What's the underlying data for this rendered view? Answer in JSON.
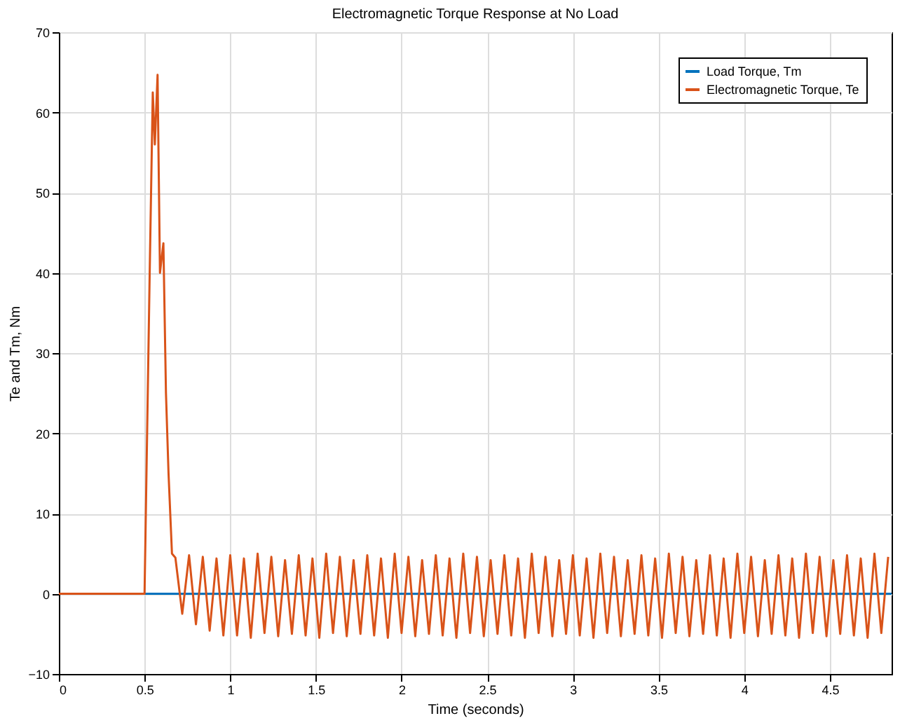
{
  "chart_data": {
    "type": "line",
    "title": "Electromagnetic Torque Response at No Load",
    "xlabel": "Time (seconds)",
    "ylabel": "Te and Tm, Nm",
    "xlim": [
      0,
      4.86
    ],
    "xticks": [
      0,
      0.5,
      1,
      1.5,
      2,
      2.5,
      3,
      3.5,
      4,
      4.5
    ],
    "ylim": [
      -10,
      70
    ],
    "yticks": [
      -10,
      0,
      10,
      20,
      30,
      40,
      50,
      60,
      70
    ],
    "grid": true,
    "legend": "top right",
    "line_style": "solid",
    "marker": "none",
    "series": [
      {
        "name": "Load Torque, Tm",
        "color": "#0072bd",
        "x": [
          0,
          4.86
        ],
        "values": [
          0,
          0
        ]
      },
      {
        "name": "Electromagnetic Torque, Te",
        "color": "#d95319",
        "x": [
          0,
          0.5,
          0.53,
          0.548,
          0.56,
          0.576,
          0.59,
          0.61,
          0.625,
          0.64,
          0.66,
          0.68,
          0.72,
          0.76,
          0.8,
          0.84,
          0.88,
          0.92,
          0.96,
          1.0,
          1.04,
          1.08,
          1.12,
          1.16,
          1.2,
          1.24,
          1.28,
          1.32,
          1.36,
          1.4,
          1.44,
          1.48,
          1.52,
          1.56,
          1.6,
          1.64,
          1.68,
          1.72,
          1.76,
          1.8,
          1.84,
          1.88,
          1.92,
          1.96,
          2.0,
          2.04,
          2.08,
          2.12,
          2.16,
          2.2,
          2.24,
          2.28,
          2.32,
          2.36,
          2.4,
          2.44,
          2.48,
          2.52,
          2.56,
          2.6,
          2.64,
          2.68,
          2.72,
          2.76,
          2.8,
          2.84,
          2.88,
          2.92,
          2.96,
          3.0,
          3.04,
          3.08,
          3.12,
          3.16,
          3.2,
          3.24,
          3.28,
          3.32,
          3.36,
          3.4,
          3.44,
          3.48,
          3.52,
          3.56,
          3.6,
          3.64,
          3.68,
          3.72,
          3.76,
          3.8,
          3.84,
          3.88,
          3.92,
          3.96,
          4.0,
          4.04,
          4.08,
          4.12,
          4.16,
          4.2,
          4.24,
          4.28,
          4.32,
          4.36,
          4.4,
          4.44,
          4.48,
          4.52,
          4.56,
          4.6,
          4.64,
          4.68,
          4.72,
          4.76,
          4.8,
          4.84
        ],
        "values": [
          0,
          0,
          40,
          62.5,
          56,
          64.7,
          40,
          43.7,
          25,
          15,
          5,
          4.5,
          -2.5,
          4.8,
          -3.8,
          4.6,
          -4.6,
          4.4,
          -5.2,
          4.8,
          -5.2,
          4.4,
          -5.5,
          5.0,
          -4.9,
          4.6,
          -5.3,
          4.2,
          -5.0,
          4.8,
          -5.2,
          4.4,
          -5.5,
          5.0,
          -4.9,
          4.6,
          -5.3,
          4.2,
          -5.0,
          4.8,
          -5.2,
          4.4,
          -5.5,
          5.0,
          -4.9,
          4.6,
          -5.3,
          4.2,
          -5.0,
          4.8,
          -5.2,
          4.4,
          -5.5,
          5.0,
          -4.9,
          4.6,
          -5.3,
          4.2,
          -5.0,
          4.8,
          -5.2,
          4.4,
          -5.5,
          5.0,
          -4.9,
          4.6,
          -5.3,
          4.2,
          -5.0,
          4.8,
          -5.2,
          4.4,
          -5.5,
          5.0,
          -4.9,
          4.6,
          -5.3,
          4.2,
          -5.0,
          4.8,
          -5.2,
          4.4,
          -5.5,
          5.0,
          -4.9,
          4.6,
          -5.3,
          4.2,
          -5.0,
          4.8,
          -5.2,
          4.4,
          -5.5,
          5.0,
          -4.9,
          4.6,
          -5.3,
          4.2,
          -5.0,
          4.8,
          -5.2,
          4.4,
          -5.5,
          5.0,
          -4.9,
          4.6,
          -5.3,
          4.2,
          -5.0,
          4.8,
          -5.2,
          4.4,
          -5.5,
          5.0,
          -4.9,
          4.6
        ]
      }
    ]
  }
}
